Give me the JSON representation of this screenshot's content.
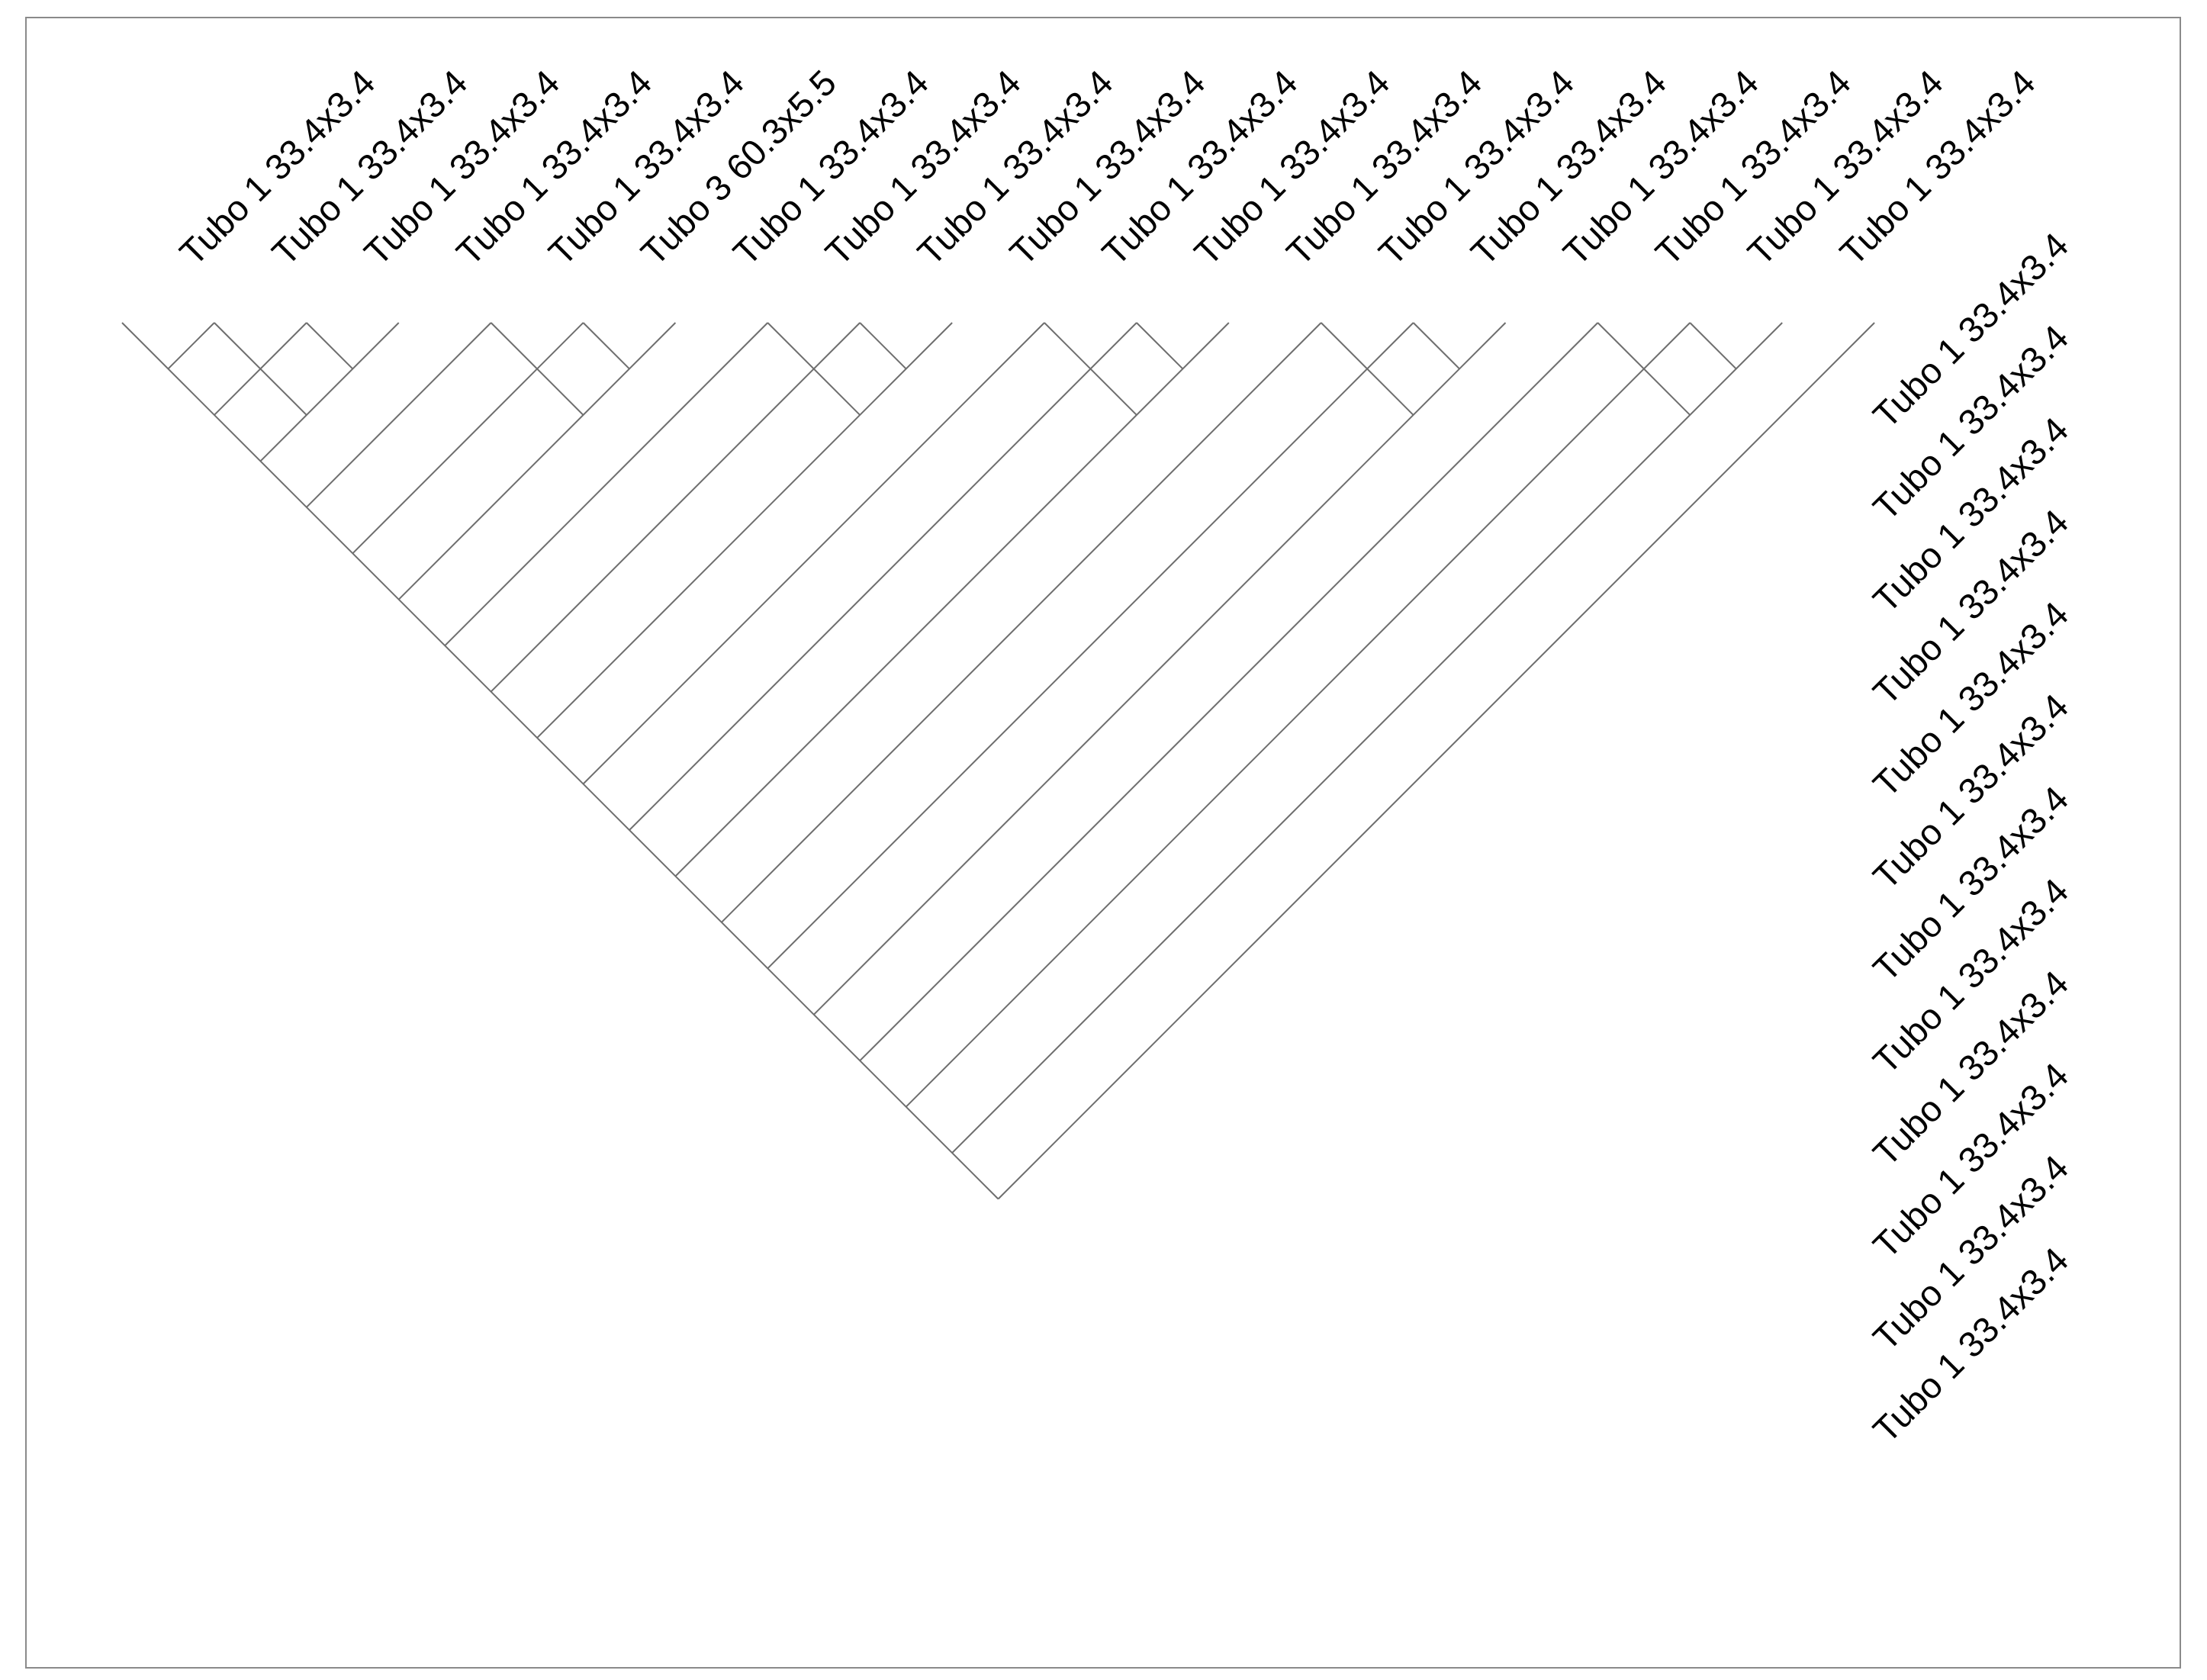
{
  "diagram": {
    "top_labels": [
      "Tubo 1 33.4x3.4",
      "Tubo 1 33.4x3.4",
      "Tubo 1 33.4x3.4",
      "Tubo 1 33.4x3.4",
      "Tubo 1 33.4x3.4",
      "Tubo 3 60.3x5.5",
      "Tubo 1 33.4x3.4",
      "Tubo 1 33.4x3.4",
      "Tubo 1 33.4x3.4",
      "Tubo 1 33.4x3.4",
      "Tubo 1 33.4x3.4",
      "Tubo 1 33.4x3.4",
      "Tubo 1 33.4x3.4",
      "Tubo 1 33.4x3.4",
      "Tubo 1 33.4x3.4",
      "Tubo 1 33.4x3.4",
      "Tubo 1 33.4x3.4",
      "Tubo 1 33.4x3.4",
      "Tubo 1 33.4x3.4"
    ],
    "right_labels": [
      "Tubo 1 33.4x3.4",
      "Tubo 1 33.4x3.4",
      "Tubo 1 33.4x3.4",
      "Tubo 1 33.4x3.4",
      "Tubo 1 33.4x3.4",
      "Tubo 1 33.4x3.4",
      "Tubo 1 33.4x3.4",
      "Tubo 1 33.4x3.4",
      "Tubo 1 33.4x3.4",
      "Tubo 1 33.4x3.4",
      "Tubo 1 33.4x3.4",
      "Tubo 1 33.4x3.4"
    ],
    "block_sizes": [
      3,
      3,
      3,
      3,
      3,
      3,
      2
    ]
  },
  "colors": {
    "line": "#6e6e6e",
    "frame": "#8a8a8a",
    "text": "#000000",
    "background": "#ffffff"
  }
}
